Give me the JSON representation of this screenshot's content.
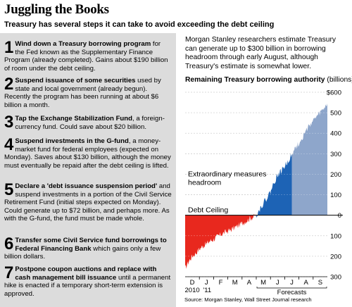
{
  "header": {
    "title": "Juggling the Books",
    "subtitle": "Treasury has several steps it can take to avoid exceeding the debt ceiling"
  },
  "steps": [
    {
      "num": "1",
      "bold": "Wind down a Treasury borrowing program",
      "text": " for the Fed known as the Supplementary Finance Program (already completed). Gains about $190 billion of room under the debt ceiling."
    },
    {
      "num": "2",
      "bold": "Suspend issuance of some securities",
      "text": " used by state and local government (already begun). Recently the program has been running at about $6 billion a month."
    },
    {
      "num": "3",
      "bold": "Tap the Exchange Stabilization Fund",
      "text": ", a foreign-currency fund. Could save about $20 billion."
    },
    {
      "num": "4",
      "bold": "Suspend investments in the G-fund",
      "text": ", a money-market fund for federal employees (expected on Monday). Saves about $130 billion, although the money must eventually be repaid after the debt ceiling is lifted."
    },
    {
      "num": "5",
      "bold": "Declare a 'debt issuance suspension period'",
      "text": " and suspend investments in a portion of the Civil Service Retirement Fund (initial steps expected on Monday). Could generate up to $72 billion, and perhaps more. As with the G-fund, the fund must be made whole."
    },
    {
      "num": "6",
      "bold": "Transfer some Civil Service fund borrowings to Federal Financing Bank",
      "text": " which gains only a few billion dollars."
    },
    {
      "num": "7",
      "bold": "Postpone coupon auctions and replace with cash management bill issuance",
      "text": " until a permanent hike is enacted if a temporary short-term extension is approved."
    }
  ],
  "right_text": "Morgan Stanley researchers estimate Treasury can generate up to $300 billion in borrowing headroom through early August, although Treasury's estimate is somewhat lower.",
  "chart_data": {
    "type": "area",
    "title": "Remaining Treasury borrowing authority",
    "title_unit": "(billions)",
    "ylim": [
      -300,
      600
    ],
    "yticks_above": [
      "$600",
      "500",
      "400",
      "300",
      "200",
      "100",
      "0"
    ],
    "yticks_below": [
      "100",
      "200",
      "300"
    ],
    "months": [
      "D",
      "J",
      "F",
      "M",
      "A",
      "M",
      "J",
      "J",
      "A",
      "S"
    ],
    "year_labels": [
      "2010",
      "'11"
    ],
    "forecasts_label": "Forecasts",
    "annotations": {
      "extraordinary": "Extraordinary measures headroom",
      "debt_ceiling": "Debt Ceiling"
    },
    "series": [
      {
        "name": "Debt Ceiling",
        "x": [
          0,
          0.25,
          0.5,
          0.75,
          1,
          1.25,
          1.5,
          1.75,
          2,
          2.25,
          2.5,
          2.75,
          3,
          3.25,
          3.5,
          3.75,
          4,
          4.25,
          4.5,
          4.75,
          5
        ],
        "values": [
          -260,
          -225,
          -200,
          -185,
          -165,
          -150,
          -140,
          -125,
          -118,
          -105,
          -95,
          -85,
          -78,
          -70,
          -60,
          -50,
          -40,
          -30,
          -18,
          -10,
          0
        ]
      },
      {
        "name": "Extraordinary measures headroom",
        "x": [
          5,
          5.25,
          5.5,
          5.75,
          6,
          6.25,
          6.5,
          6.75,
          7,
          7.25,
          7.5
        ],
        "values": [
          0,
          30,
          60,
          85,
          115,
          160,
          195,
          215,
          240,
          265,
          300
        ]
      },
      {
        "name": "Forecasts",
        "x": [
          7.5,
          7.75,
          8,
          8.25,
          8.5,
          8.75,
          9,
          9.25,
          9.5,
          9.75,
          10
        ],
        "values": [
          300,
          330,
          350,
          380,
          410,
          440,
          460,
          480,
          500,
          520,
          545
        ]
      }
    ],
    "colors": {
      "below": "#e8281e",
      "headroom": "#1d63b5",
      "forecast": "#8ea6cb",
      "grid": "#bfbfbf"
    }
  },
  "source": "Source: Morgan Stanley, Wall Street Journal research"
}
